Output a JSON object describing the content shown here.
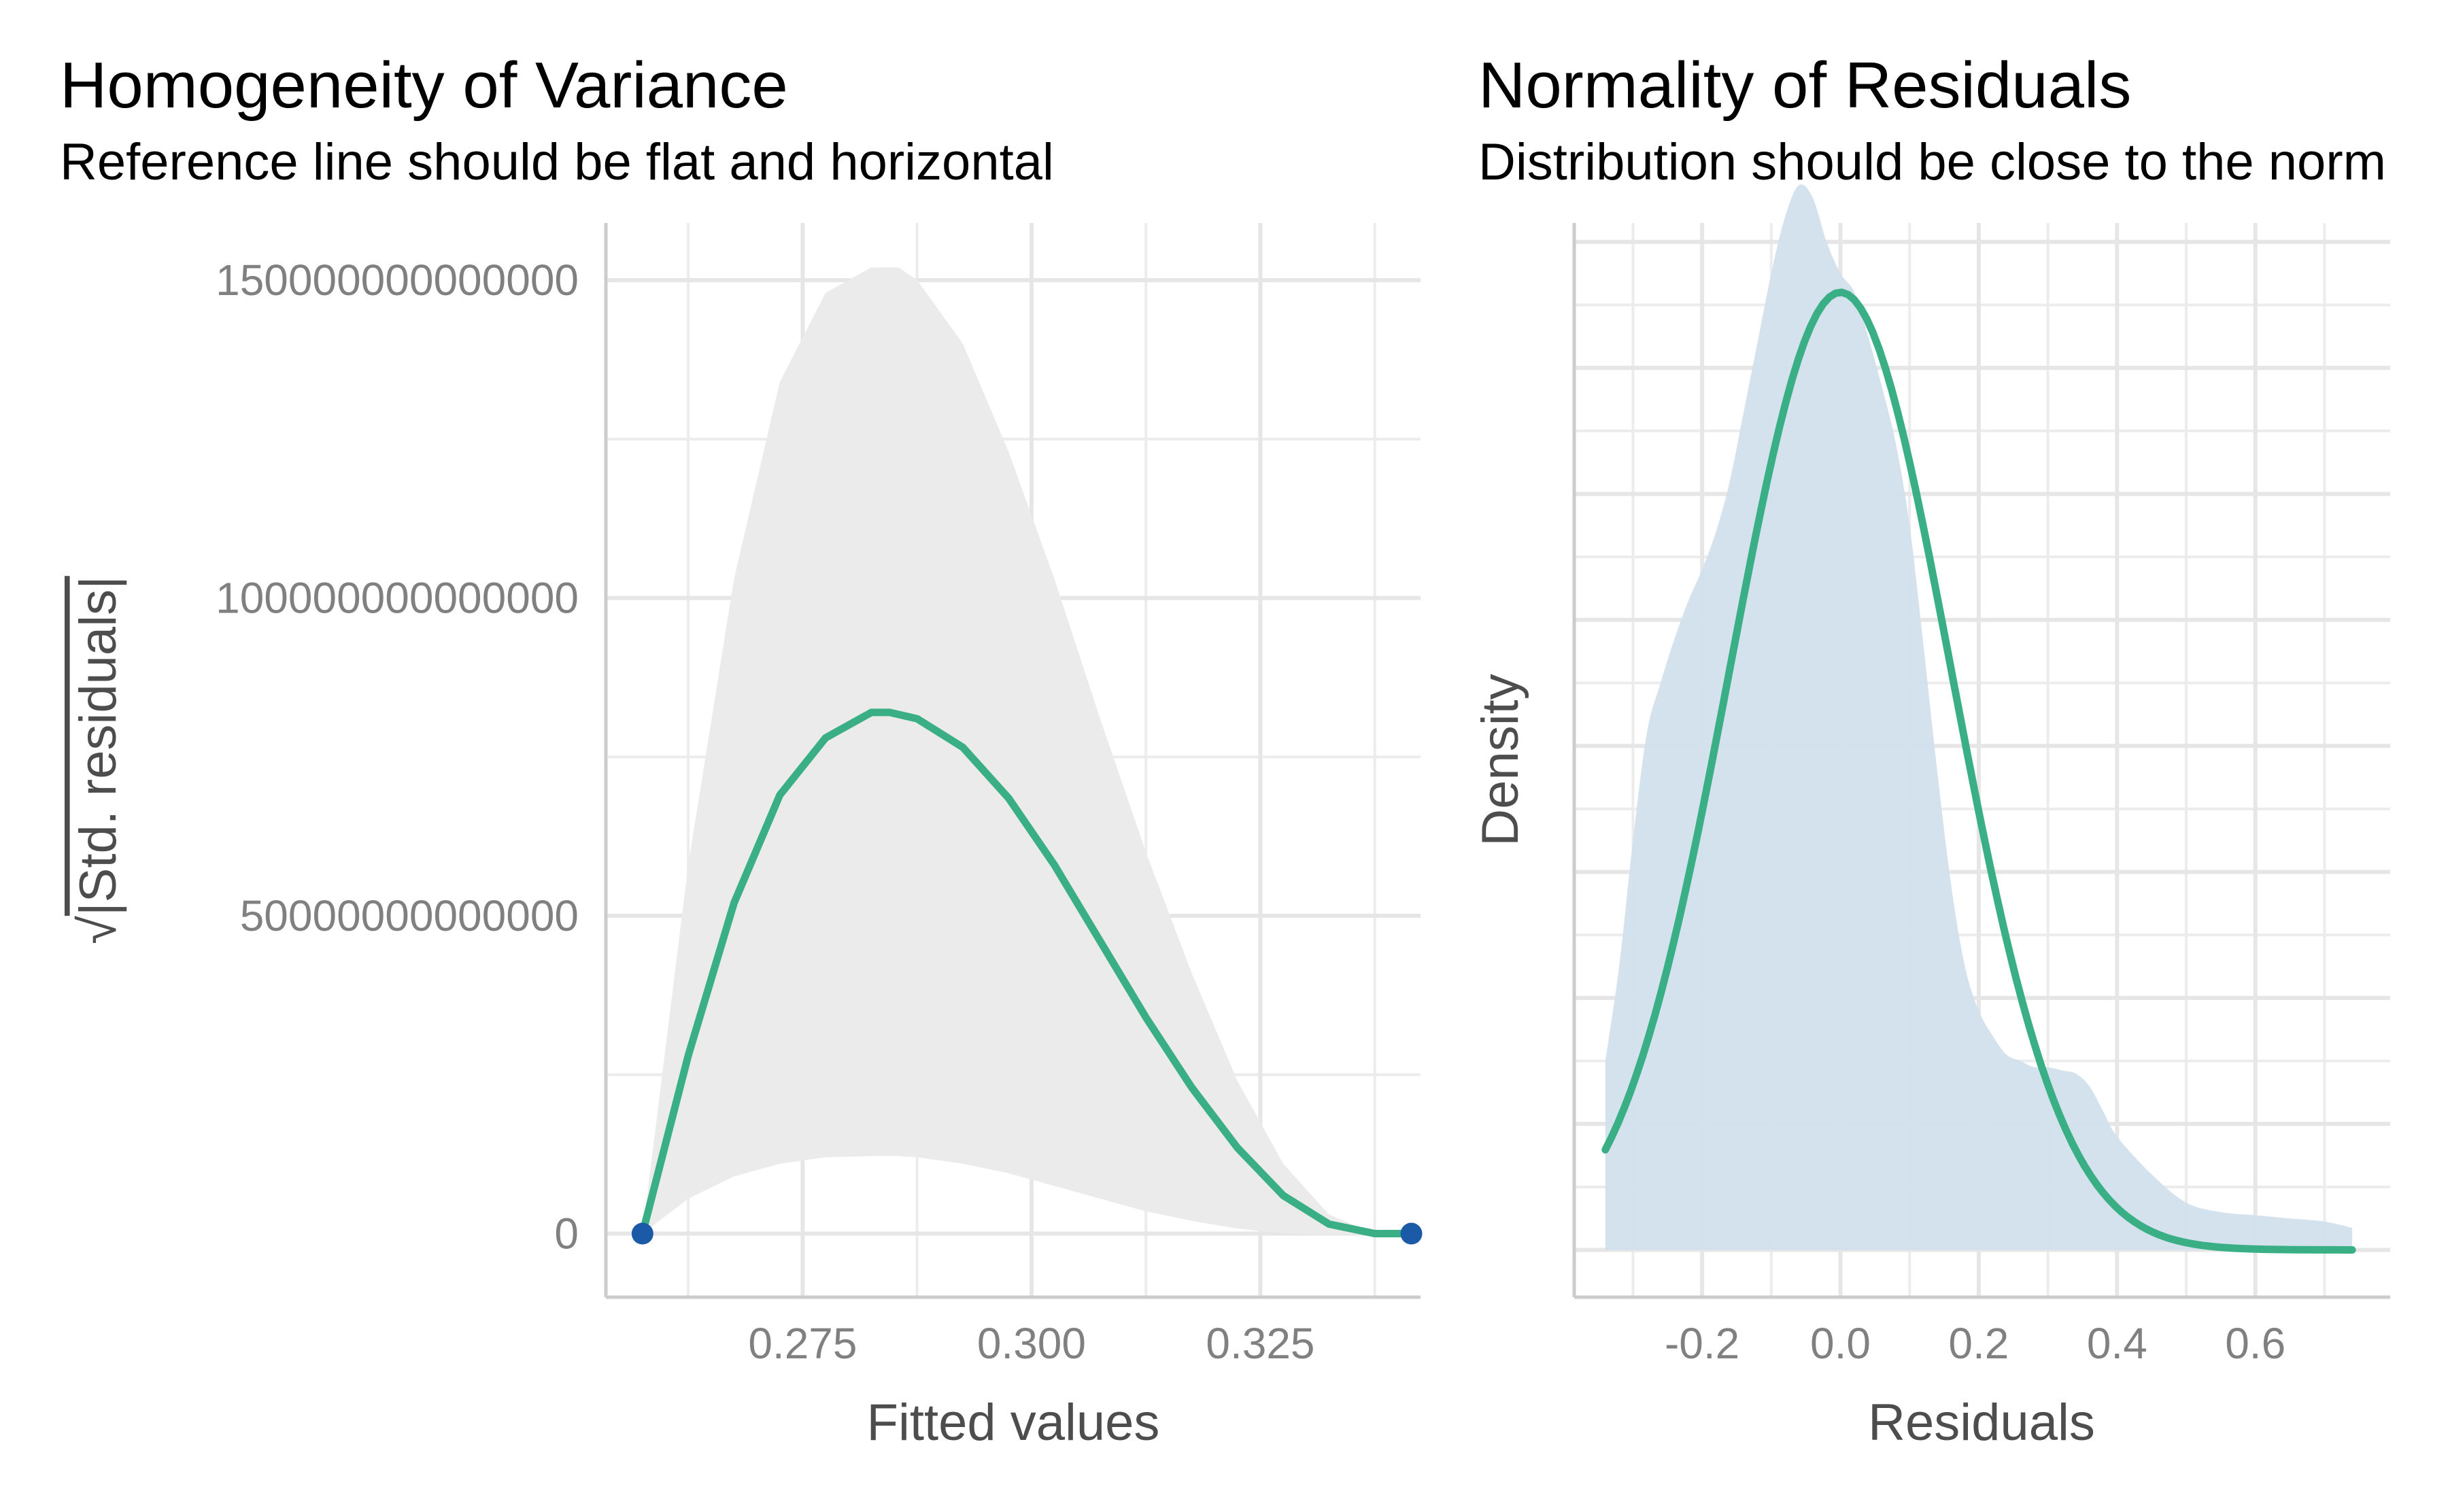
{
  "chart_data": [
    {
      "type": "line",
      "title": "Homogeneity of Variance",
      "subtitle": "Reference line should be flat and horizontal",
      "xlabel": "Fitted values",
      "ylabel_root": "√",
      "ylabel": "|Std. residuals|",
      "xlim": [
        0.2535,
        0.3425
      ],
      "ylim": [
        -10000000000000,
        159000000000000
      ],
      "x_ticks": [
        0.275,
        0.3,
        0.325
      ],
      "x_tick_labels": [
        "0.275",
        "0.300",
        "0.325"
      ],
      "y_ticks": [
        0,
        50000000000000,
        100000000000000,
        150000000000000
      ],
      "y_tick_labels": [
        "0",
        "50000000000000",
        "100000000000000",
        "150000000000000"
      ],
      "grid": true,
      "points": [
        {
          "x": 0.2575,
          "y": 0
        },
        {
          "x": 0.3415,
          "y": 0
        }
      ],
      "smooth_line": {
        "x": [
          0.2575,
          0.2625,
          0.2675,
          0.2725,
          0.2775,
          0.2825,
          0.2845,
          0.2875,
          0.2925,
          0.2975,
          0.3025,
          0.3075,
          0.3125,
          0.3175,
          0.3225,
          0.3275,
          0.3325,
          0.3375,
          0.3415
        ],
        "y": [
          0,
          28000000000000,
          52000000000000,
          69000000000000,
          78000000000000,
          82000000000000,
          82000000000000,
          81000000000000,
          76500000000000,
          68500000000000,
          58000000000000,
          46000000000000,
          34000000000000,
          23000000000000,
          13500000000000,
          6000000000000,
          1500000000000,
          0,
          0
        ]
      },
      "confidence_band": {
        "x": [
          0.2575,
          0.2625,
          0.2675,
          0.2725,
          0.2775,
          0.2825,
          0.2855,
          0.2875,
          0.2925,
          0.2975,
          0.3025,
          0.3075,
          0.3125,
          0.3175,
          0.3225,
          0.3275,
          0.3325,
          0.3375,
          0.3415
        ],
        "upper": [
          0,
          58000000000000,
          103000000000000,
          134000000000000,
          148000000000000,
          152000000000000,
          152000000000000,
          150000000000000,
          140000000000000,
          123000000000000,
          103000000000000,
          81000000000000,
          60000000000000,
          41000000000000,
          24000000000000,
          11000000000000,
          3000000000000,
          0,
          0
        ],
        "lower": [
          0,
          5500000000000,
          9000000000000,
          11000000000000,
          12000000000000,
          12200000000000,
          12200000000000,
          12000000000000,
          11000000000000,
          9500000000000,
          7500000000000,
          5500000000000,
          3500000000000,
          2000000000000,
          800000000000,
          0,
          -200000000000,
          0,
          0
        ]
      },
      "colors": {
        "line": "#3aaf85",
        "points": "#1b5aa7",
        "band": "#ebebeb"
      }
    },
    {
      "type": "area",
      "title": "Normality of Residuals",
      "subtitle": "Distribution should be close to the norm",
      "xlabel": "Residuals",
      "ylabel": "Density",
      "xlim": [
        -0.385,
        0.795
      ],
      "ylim": [
        -0.075,
        1.63
      ],
      "x_ticks": [
        -0.2,
        0.0,
        0.2,
        0.4,
        0.6
      ],
      "x_tick_labels": [
        "-0.2",
        "0.0",
        "0.2",
        "0.4",
        "0.6"
      ],
      "y_tick_labels": [],
      "grid": true,
      "density": {
        "x": [
          -0.34,
          -0.32,
          -0.3,
          -0.28,
          -0.26,
          -0.24,
          -0.22,
          -0.2,
          -0.18,
          -0.16,
          -0.14,
          -0.12,
          -0.1,
          -0.08,
          -0.06,
          -0.04,
          -0.02,
          0.0,
          0.02,
          0.04,
          0.06,
          0.08,
          0.1,
          0.12,
          0.14,
          0.16,
          0.18,
          0.2,
          0.22,
          0.24,
          0.26,
          0.28,
          0.3,
          0.32,
          0.34,
          0.36,
          0.38,
          0.4,
          0.45,
          0.5,
          0.55,
          0.6,
          0.65,
          0.7,
          0.74
        ],
        "y": [
          0.3,
          0.45,
          0.65,
          0.82,
          0.9,
          0.97,
          1.03,
          1.08,
          1.14,
          1.22,
          1.33,
          1.44,
          1.55,
          1.64,
          1.69,
          1.67,
          1.6,
          1.55,
          1.52,
          1.45,
          1.37,
          1.28,
          1.15,
          0.96,
          0.76,
          0.58,
          0.45,
          0.38,
          0.34,
          0.31,
          0.3,
          0.29,
          0.29,
          0.285,
          0.28,
          0.26,
          0.22,
          0.18,
          0.12,
          0.075,
          0.06,
          0.055,
          0.05,
          0.045,
          0.035
        ]
      },
      "normal_curve": {
        "mean": 0.0,
        "sd": 0.16,
        "peak": 1.52,
        "x_from": -0.34,
        "x_to": 0.74
      },
      "colors": {
        "line": "#3aaf85",
        "fill": "#d2e0ec"
      }
    }
  ]
}
